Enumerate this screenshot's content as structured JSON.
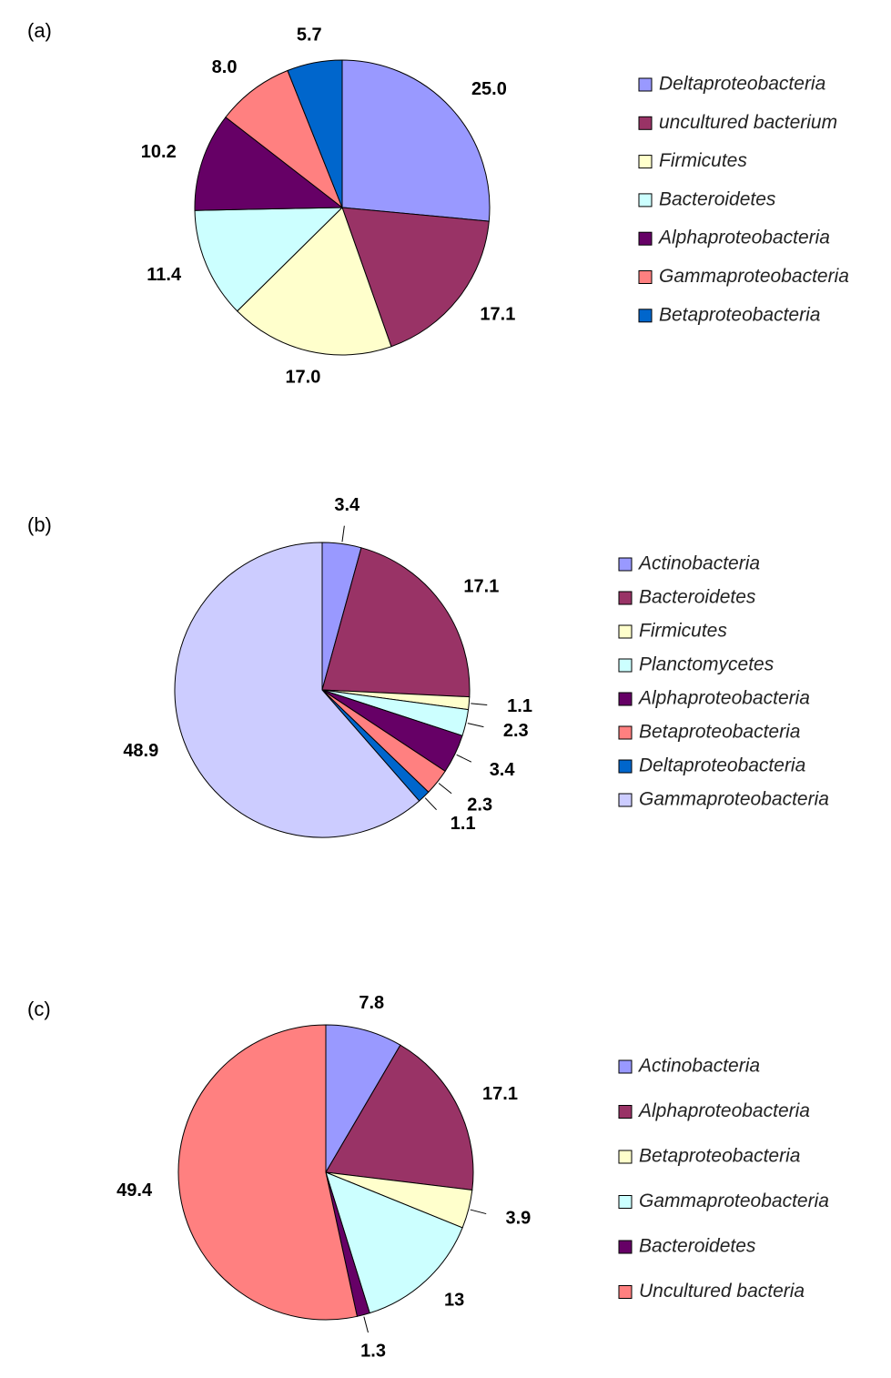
{
  "chart_data": [
    {
      "type": "pie",
      "title": "(a)",
      "categories": [
        "Deltaproteobacteria",
        "uncultured bacterium",
        "Firmicutes",
        "Bacteroidetes",
        "Alphaproteobacteria",
        "Gammaproteobacteria",
        "Betaproteobacteria"
      ],
      "values": [
        25.0,
        17.1,
        17.0,
        11.4,
        10.2,
        8.0,
        5.7
      ],
      "value_labels": [
        "25.0",
        "17.1",
        "17.0",
        "11.4",
        "10.2",
        "8.0",
        "5.7"
      ],
      "colors": [
        "#9999ff",
        "#993366",
        "#ffffcc",
        "#ccffff",
        "#660066",
        "#ff8080",
        "#0066cc"
      ]
    },
    {
      "type": "pie",
      "title": "(b)",
      "categories": [
        "Actinobacteria",
        "Bacteroidetes",
        "Firmicutes",
        "Planctomycetes",
        "Alphaproteobacteria",
        "Betaproteobacteria",
        "Deltaproteobacteria",
        "Gammaproteobacteria"
      ],
      "values": [
        3.4,
        17.1,
        1.1,
        2.3,
        3.4,
        2.3,
        1.1,
        48.9
      ],
      "colors": [
        "#9999ff",
        "#993366",
        "#ffffcc",
        "#ccffff",
        "#660066",
        "#ff8080",
        "#0066cc",
        "#ccccff"
      ]
    },
    {
      "type": "pie",
      "title": "(c)",
      "categories": [
        "Actinobacteria",
        "Alphaproteobacteria",
        "Betaproteobacteria",
        "Gammaproteobacteria",
        "Bacteroidetes",
        "Uncultured bacteria"
      ],
      "values": [
        7.8,
        17.1,
        3.9,
        13,
        1.3,
        49.4
      ],
      "colors": [
        "#9999ff",
        "#993366",
        "#ffffcc",
        "#ccffff",
        "#660066",
        "#ff8080"
      ]
    }
  ]
}
